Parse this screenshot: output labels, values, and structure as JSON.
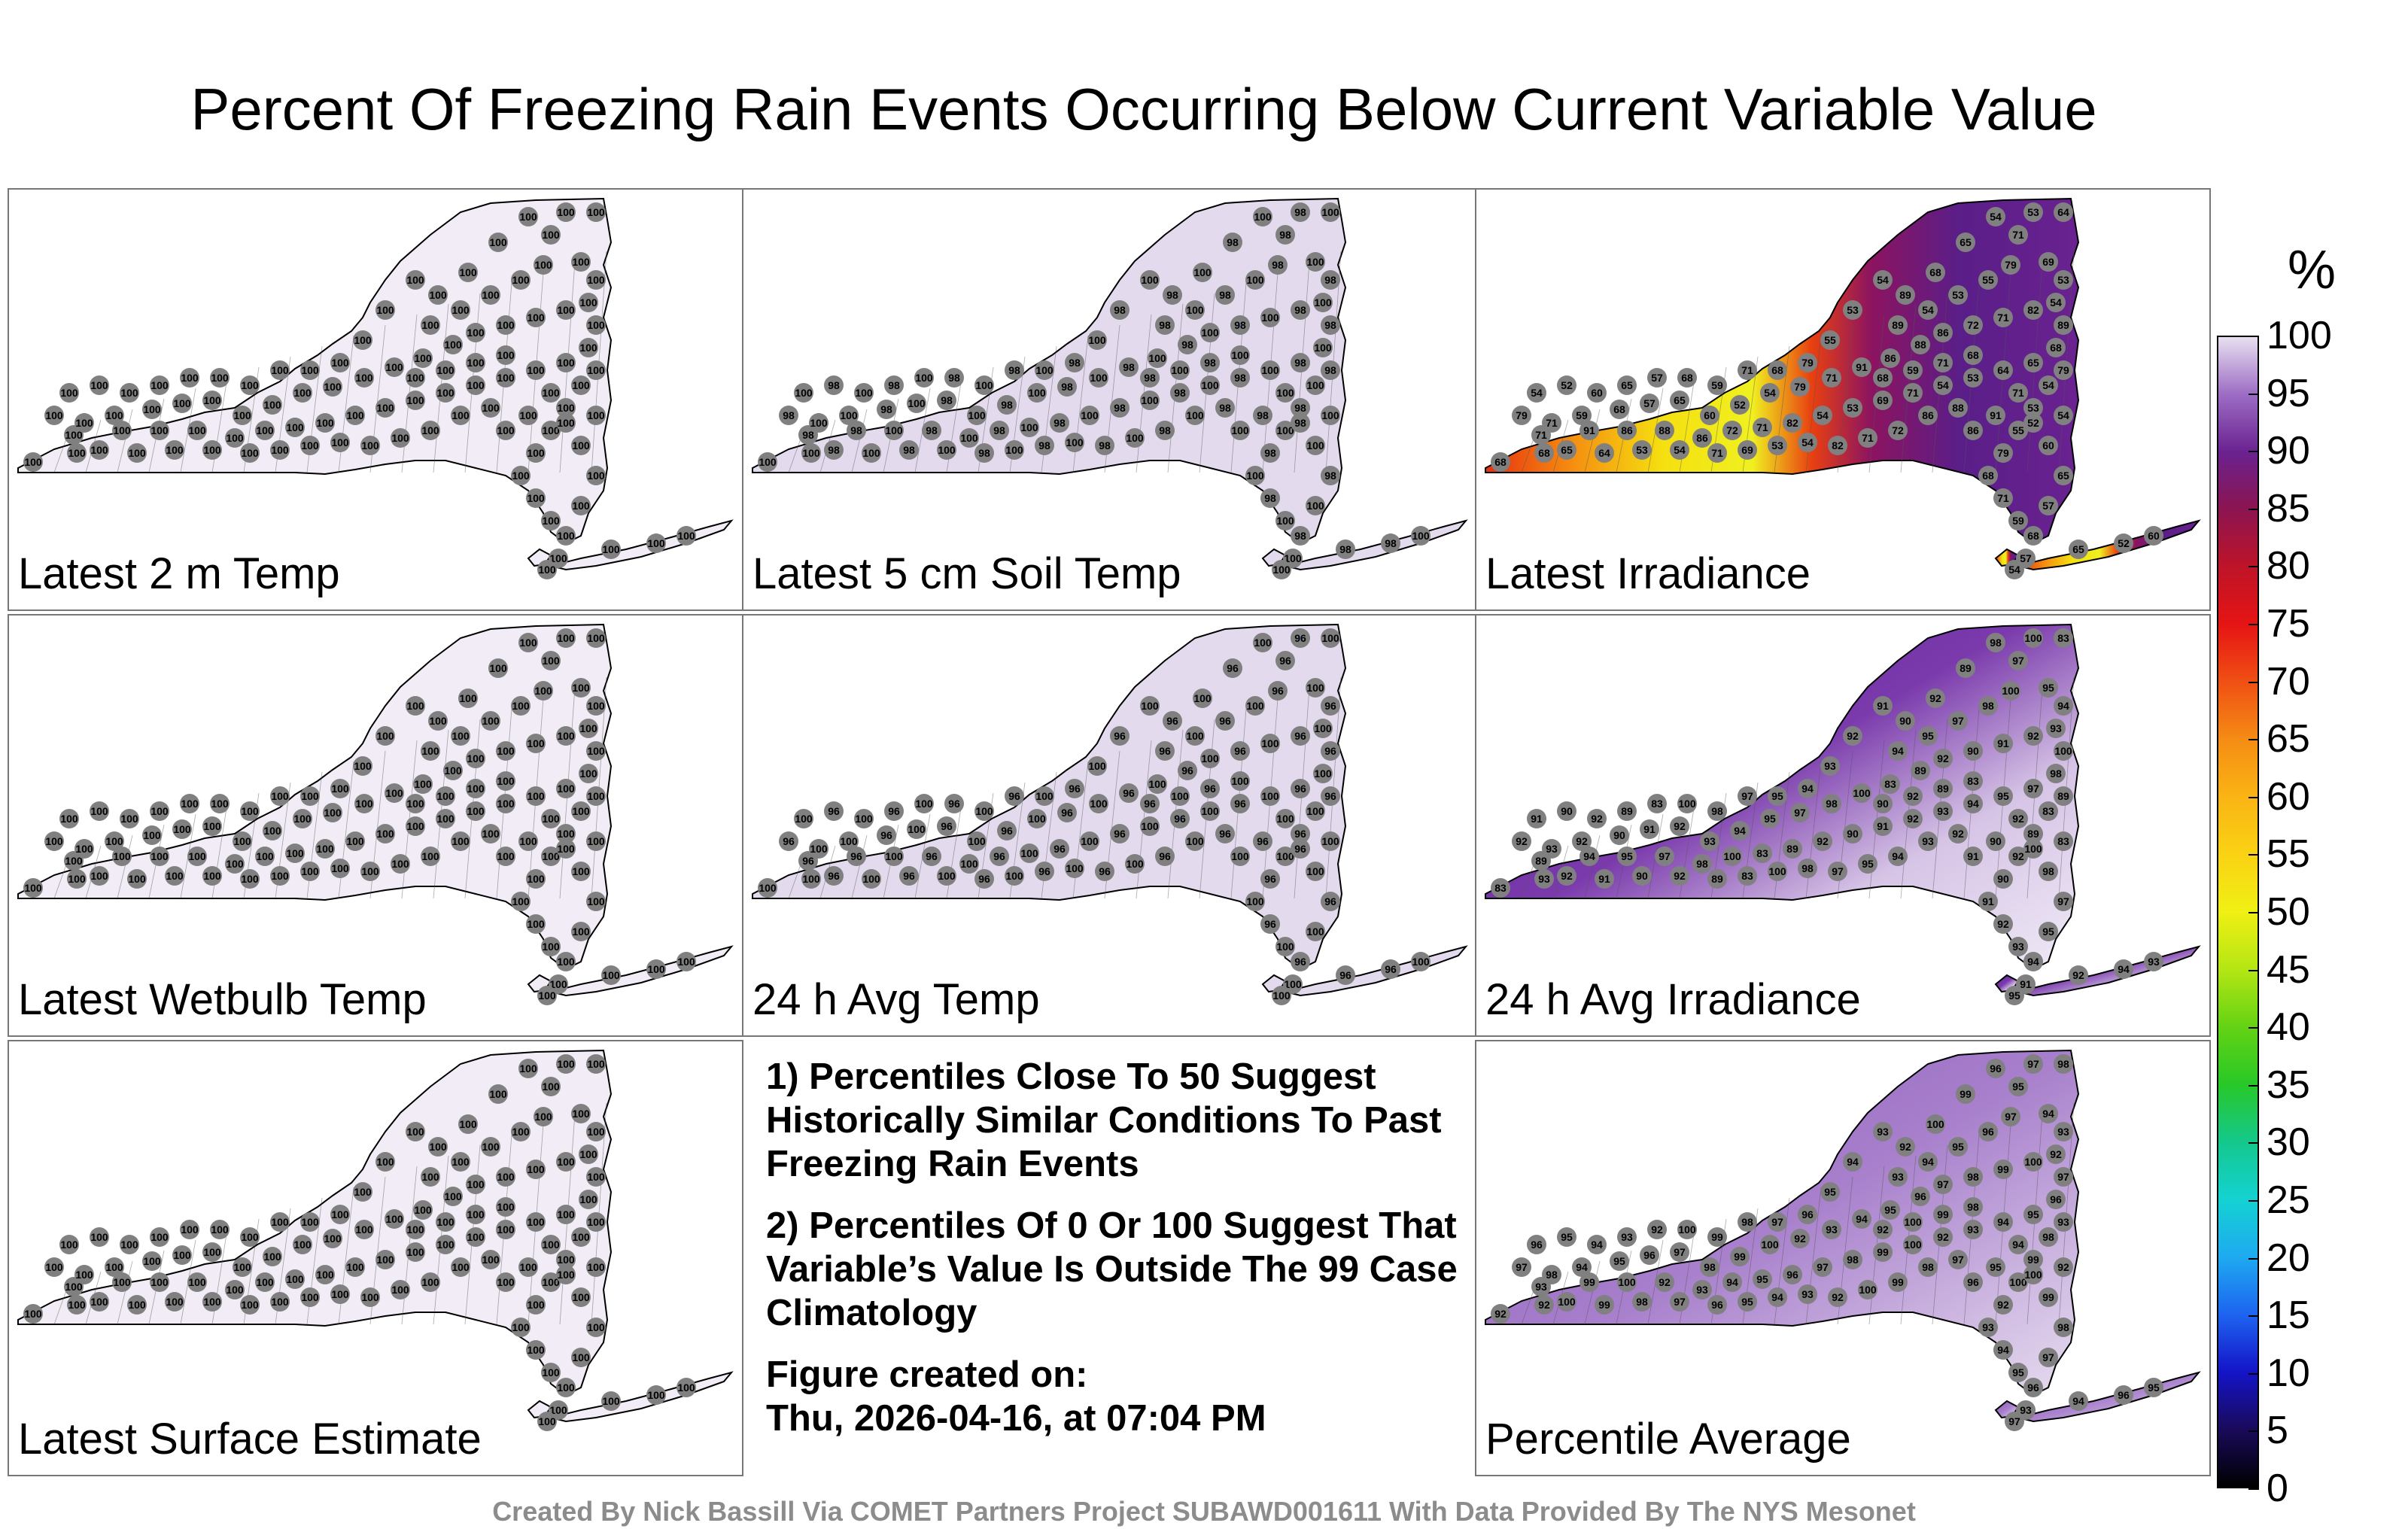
{
  "title": "Percent Of Freezing Rain Events Occurring Below Current Variable Value",
  "panels": [
    {
      "label": "Latest 2 m Temp",
      "fill": "#f1ecf5",
      "pattern": "uniform",
      "station_values": [
        "100"
      ]
    },
    {
      "label": "Latest 5 cm Soil Temp",
      "fill": "#e4daee",
      "pattern": "uniform",
      "station_values": [
        "100",
        "98"
      ]
    },
    {
      "label": "Latest Irradiance",
      "fill": "#6a2290",
      "pattern": "irradiance",
      "station_values": [
        "68",
        "71",
        "59",
        "68",
        "57",
        "65",
        "60",
        "52",
        "54",
        "79",
        "71",
        "91",
        "86",
        "88",
        "86",
        "72",
        "71",
        "82",
        "54",
        "53",
        "69",
        "71",
        "54",
        "53",
        "64",
        "65",
        "68",
        "89",
        "54",
        "53",
        "55",
        "79"
      ]
    },
    {
      "label": "Latest Wetbulb Temp",
      "fill": "#f1ecf5",
      "pattern": "uniform",
      "station_values": [
        "100"
      ]
    },
    {
      "label": "24 h Avg Temp",
      "fill": "#e4daee",
      "pattern": "uniform",
      "station_values": [
        "100",
        "96"
      ]
    },
    {
      "label": "24 h Avg Irradiance",
      "fill": "#6e2ea0",
      "pattern": "avg-irradiance",
      "station_values": [
        "83",
        "89",
        "92",
        "90",
        "91",
        "92",
        "93",
        "94",
        "95",
        "97",
        "98",
        "100"
      ]
    },
    {
      "label": "Latest Surface Estimate",
      "fill": "#f1ecf5",
      "pattern": "uniform",
      "station_values": [
        "100"
      ]
    },
    {
      "label": "Percentile Average",
      "fill": "#9c6cc4",
      "pattern": "average",
      "station_values": [
        "92",
        "93",
        "94",
        "95",
        "96",
        "97",
        "98",
        "99",
        "100"
      ]
    }
  ],
  "notes": [
    "1) Percentiles Close To 50 Suggest Historically Similar Conditions To Past Freezing Rain Events",
    "2) Percentiles Of 0 Or 100 Suggest That Variable’s Value Is Outside The 99 Case Climatology",
    "Figure created on:",
    "Thu, 2026-04-16, at 07:04 PM"
  ],
  "footer": "Created By Nick Bassill Via COMET Partners Project SUBAWD001611 With Data Provided By The NYS Mesonet",
  "chart_data": {
    "type": "heatmap",
    "title": "Percent Of Freezing Rain Events Occurring Below Current Variable Value",
    "colorbar": {
      "unit": "%",
      "range": [
        0,
        100
      ],
      "ticks": [
        "0",
        "5",
        "10",
        "15",
        "20",
        "25",
        "30",
        "35",
        "40",
        "45",
        "50",
        "55",
        "60",
        "65",
        "70",
        "75",
        "80",
        "85",
        "90",
        "95",
        "100"
      ],
      "colors": [
        "#000000",
        "#1a0a5a",
        "#1414c8",
        "#1e64f0",
        "#1eaaf0",
        "#14d2d2",
        "#14c88c",
        "#28c828",
        "#64d214",
        "#b4e614",
        "#f0f014",
        "#fad214",
        "#fab414",
        "#f58c14",
        "#f05014",
        "#e61414",
        "#be1428",
        "#8c1450",
        "#6a2290",
        "#9c6cc4",
        "#e8e0f0"
      ]
    }
  }
}
